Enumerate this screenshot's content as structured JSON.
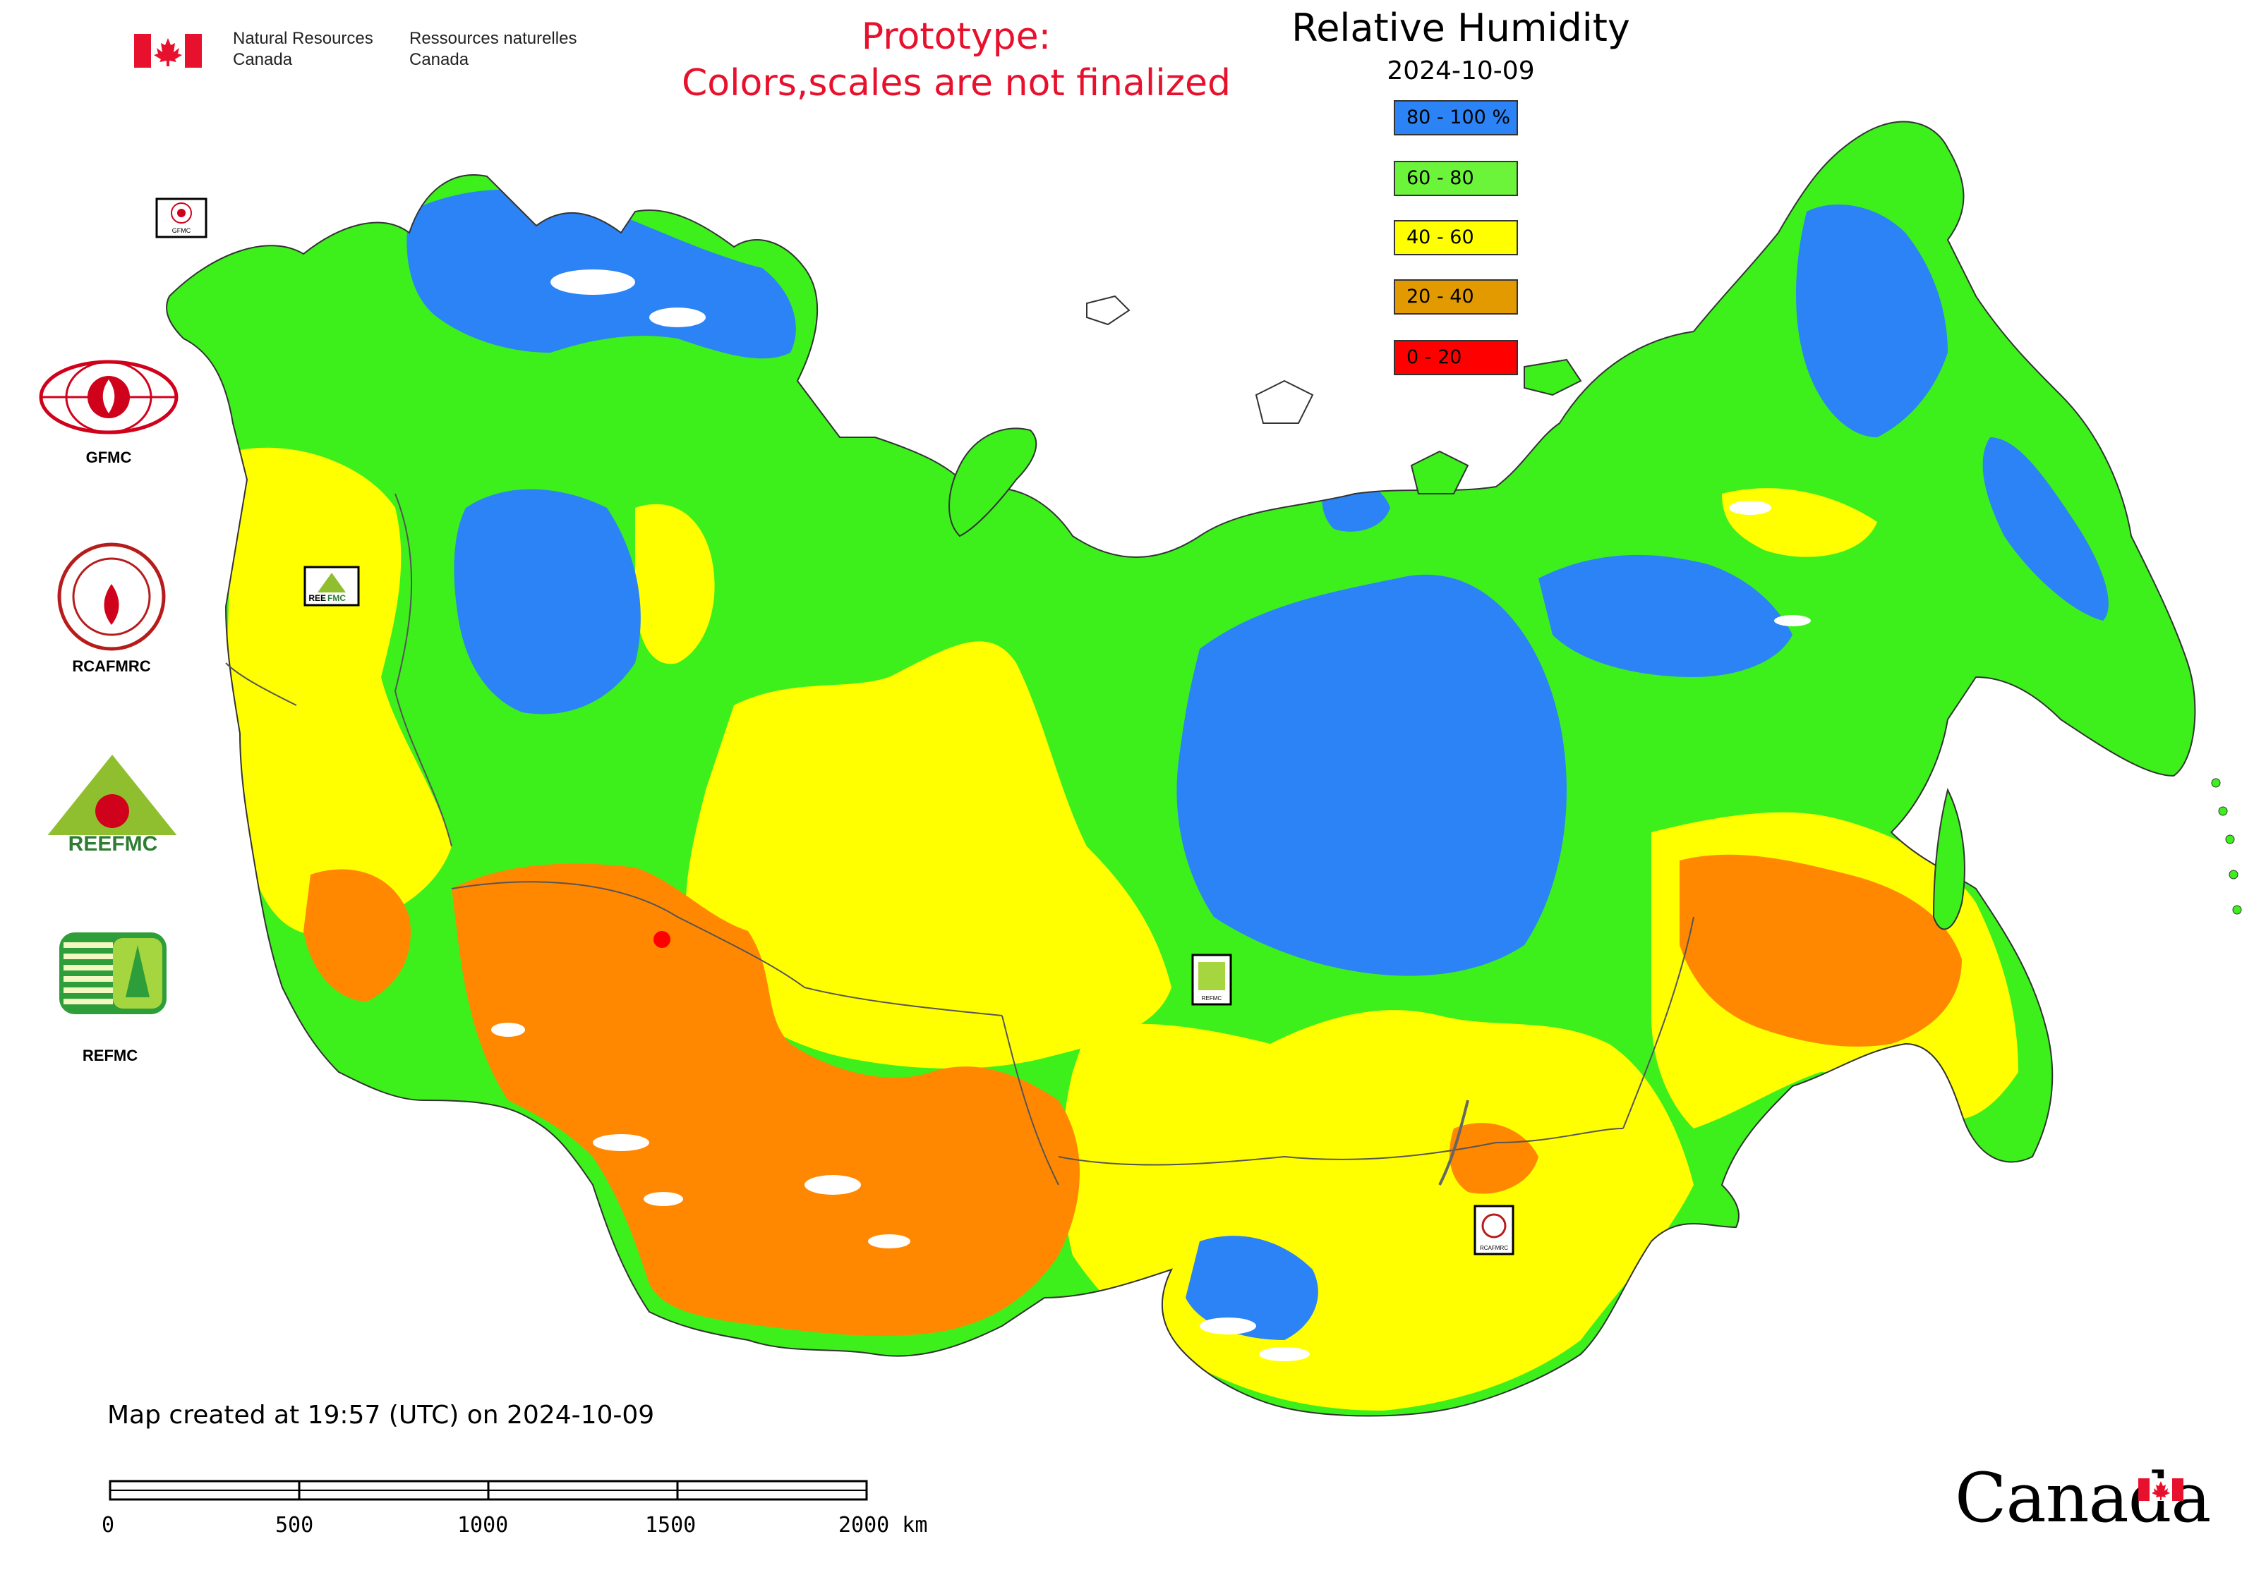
{
  "header": {
    "agency_en": [
      "Natural Resources",
      "Canada"
    ],
    "agency_fr": [
      "Ressources naturelles",
      "Canada"
    ],
    "prototype_line1": "Prototype:",
    "prototype_line2": "Colors,scales are not finalized"
  },
  "legend": {
    "title": "Relative Humidity",
    "date": "2024-10-09",
    "classes": [
      {
        "label": "80 - 100 %",
        "color": "#2b83f6"
      },
      {
        "label": "60 - 80",
        "color": "#6cf43a"
      },
      {
        "label": "40 - 60",
        "color": "#ffff00"
      },
      {
        "label": "20 - 40",
        "color": "#e39a00"
      },
      {
        "label": "0 - 20",
        "color": "#ff0000"
      }
    ]
  },
  "map_colors": {
    "blue": "#2b83f6",
    "green": "#3df01c",
    "yellow": "#ffff00",
    "orange": "#ff8800",
    "red": "#ff0000",
    "land_mask_white": "#ffffff",
    "border": "#555555"
  },
  "logos": {
    "gfmc": "GFMC",
    "rcafmrc": "RCAFMRC",
    "reefmc": "REEFMC",
    "refmc": "REFMC",
    "gfmc_small": "GFMC",
    "rcafmrc_small": "RCAFMRC",
    "refmc_small": "REFMC",
    "reefmc_small_a": "REE",
    "reefmc_small_b": "FMC"
  },
  "footer": {
    "created": "Map created at 19:57 (UTC) on 2024-10-09",
    "scale_ticks": [
      "0",
      "500",
      "1000",
      "1500",
      "2000 km"
    ],
    "wordmark": "Canada"
  }
}
